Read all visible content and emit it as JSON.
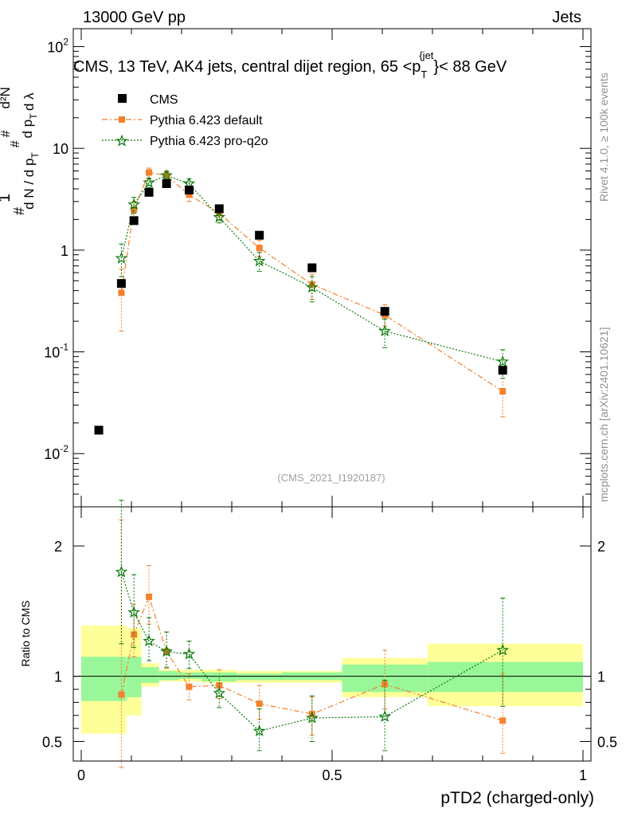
{
  "header": {
    "left": "13000 GeV pp",
    "right": "Jets"
  },
  "side_labels": {
    "rivet": "Rivet 4.1.0, ≥ 100k events",
    "mcplots": "mcplots.cern.ch [arXiv:2401.10621]"
  },
  "title": {
    "main": "CMS, 13 TeV, AK4 jets, central dijet region, 65 <p",
    "sub": "T",
    "sup": "{jet",
    "tail": "}< 88 GeV"
  },
  "watermark": "(CMS_2021_I1920187)",
  "ylabel_main": "1/N dN/dp_T dλ (# d²N / # d p_T # d p_T dλ)",
  "ylabel_ratio": "Ratio to CMS",
  "xlabel": "pTD2 (charged-only)",
  "colors": {
    "cms": "#000000",
    "default": "#f4812d",
    "proq2o": "#0a7a0a",
    "band_inner": "#99f799",
    "band_outer": "#ffff99"
  },
  "chart_data": [
    {
      "type": "scatter",
      "yscale": "log",
      "xlim": [
        0,
        1
      ],
      "ylim": [
        0.003,
        150
      ],
      "y_ticks": [
        "10^-2",
        "10^-1",
        "1",
        "10",
        "10^2"
      ],
      "legend": [
        "CMS",
        "Pythia 6.423 default",
        "Pythia 6.423 pro-q2o"
      ],
      "legend_position": "top-left",
      "series": [
        {
          "name": "CMS",
          "x": [
            0.035,
            0.08,
            0.105,
            0.135,
            0.17,
            0.215,
            0.275,
            0.355,
            0.46,
            0.605,
            0.84
          ],
          "y": [
            0.017,
            0.47,
            1.95,
            3.7,
            4.5,
            3.9,
            2.55,
            1.4,
            0.67,
            0.25,
            0.066
          ]
        },
        {
          "name": "Pythia 6.423 default",
          "x": [
            0.08,
            0.105,
            0.135,
            0.17,
            0.215,
            0.275,
            0.355,
            0.46,
            0.605,
            0.84
          ],
          "y": [
            0.38,
            2.5,
            5.8,
            5.4,
            3.5,
            2.3,
            1.05,
            0.46,
            0.23,
            0.041
          ],
          "err_lo": [
            0.16,
            2.0,
            5.0,
            4.8,
            3.0,
            2.0,
            0.87,
            0.33,
            0.18,
            0.023
          ],
          "err_hi": [
            0.65,
            3.0,
            6.4,
            6.0,
            3.9,
            2.6,
            1.25,
            0.58,
            0.29,
            0.064
          ]
        },
        {
          "name": "Pythia 6.423 pro-q2o",
          "x": [
            0.08,
            0.105,
            0.135,
            0.17,
            0.215,
            0.275,
            0.355,
            0.46,
            0.605,
            0.84
          ],
          "y": [
            0.83,
            2.8,
            4.6,
            5.4,
            4.5,
            2.1,
            0.78,
            0.43,
            0.16,
            0.08
          ],
          "err_lo": [
            0.55,
            2.3,
            4.1,
            4.9,
            4.0,
            1.85,
            0.62,
            0.31,
            0.11,
            0.055
          ],
          "err_hi": [
            1.15,
            3.3,
            5.1,
            5.9,
            5.0,
            2.35,
            0.95,
            0.55,
            0.21,
            0.105
          ]
        }
      ]
    },
    {
      "type": "scatter",
      "ylabel": "Ratio to CMS",
      "xlabel": "pTD2 (charged-only)",
      "xlim": [
        0,
        1
      ],
      "ylim": [
        0.35,
        2.3
      ],
      "x_ticks": [
        "0",
        "0.5",
        "1"
      ],
      "y_ticks": [
        "0.5",
        "1",
        "2"
      ],
      "bands": [
        {
          "x0": 0.0,
          "x1": 0.09,
          "inner": [
            0.81,
            1.15
          ],
          "outer": [
            0.56,
            1.39
          ]
        },
        {
          "x0": 0.09,
          "x1": 0.12,
          "inner": [
            0.84,
            1.15
          ],
          "outer": [
            0.7,
            1.37
          ]
        },
        {
          "x0": 0.12,
          "x1": 0.155,
          "inner": [
            0.95,
            1.07
          ],
          "outer": [
            0.92,
            1.1
          ]
        },
        {
          "x0": 0.155,
          "x1": 0.195,
          "inner": [
            0.97,
            1.04
          ],
          "outer": [
            0.96,
            1.05
          ]
        },
        {
          "x0": 0.195,
          "x1": 0.24,
          "inner": [
            0.98,
            1.03
          ],
          "outer": [
            0.96,
            1.05
          ]
        },
        {
          "x0": 0.24,
          "x1": 0.31,
          "inner": [
            0.96,
            1.03
          ],
          "outer": [
            0.95,
            1.05
          ]
        },
        {
          "x0": 0.31,
          "x1": 0.4,
          "inner": [
            0.97,
            1.02
          ],
          "outer": [
            0.95,
            1.04
          ]
        },
        {
          "x0": 0.4,
          "x1": 0.52,
          "inner": [
            0.97,
            1.03
          ],
          "outer": [
            0.95,
            1.04
          ]
        },
        {
          "x0": 0.52,
          "x1": 0.69,
          "inner": [
            0.88,
            1.09
          ],
          "outer": [
            0.84,
            1.14
          ]
        },
        {
          "x0": 0.69,
          "x1": 1.0,
          "inner": [
            0.88,
            1.11
          ],
          "outer": [
            0.77,
            1.25
          ]
        }
      ],
      "series": [
        {
          "name": "Pythia 6.423 default",
          "x": [
            0.08,
            0.105,
            0.135,
            0.17,
            0.215,
            0.275,
            0.355,
            0.46,
            0.605,
            0.84
          ],
          "y": [
            0.86,
            1.32,
            1.61,
            1.19,
            0.92,
            0.93,
            0.79,
            0.71,
            0.94,
            0.66
          ],
          "err_lo": [
            0.3,
            1.15,
            1.4,
            1.06,
            0.82,
            0.83,
            0.67,
            0.55,
            0.75,
            0.41
          ],
          "err_hi": [
            2.2,
            1.55,
            1.85,
            1.34,
            1.02,
            1.05,
            0.93,
            0.84,
            1.2,
            1.02
          ]
        },
        {
          "name": "Pythia 6.423 pro-q2o",
          "x": [
            0.08,
            0.105,
            0.135,
            0.17,
            0.215,
            0.275,
            0.355,
            0.46,
            0.605,
            0.84
          ],
          "y": [
            1.8,
            1.49,
            1.27,
            1.19,
            1.17,
            0.87,
            0.58,
            0.68,
            0.69,
            1.2
          ],
          "err_lo": [
            1.25,
            1.22,
            1.12,
            1.07,
            1.06,
            0.76,
            0.43,
            0.5,
            0.43,
            0.77
          ],
          "err_hi": [
            2.35,
            1.78,
            1.45,
            1.34,
            1.27,
            1.0,
            0.75,
            0.85,
            0.97,
            1.6
          ]
        }
      ]
    }
  ]
}
